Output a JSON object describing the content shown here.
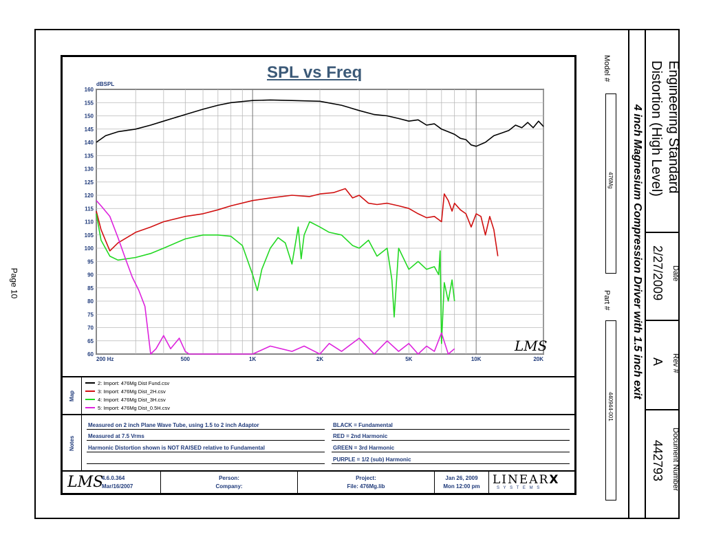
{
  "page_number": "Page 10",
  "title_block": {
    "doc_title_line1": "Engineering Standard",
    "doc_title_line2": "Distortion (High Level)",
    "subtitle": "4 inch Magnesium Compression Driver with 1.5 inch exit",
    "date_label": "Date",
    "date_value": "2/27/2009",
    "rev_label": "Rev #",
    "rev_value": "A",
    "doc_number_label": "Document Number",
    "doc_number_value": "442793",
    "model_label": "Model #",
    "model_value": "476Mg",
    "part_label": "Part #",
    "part_value": "440944-001"
  },
  "chart_data": {
    "type": "line",
    "title": "SPL vs Freq",
    "ylabel": "dBSPL",
    "xlabel": "",
    "xscale": "log",
    "xlim": [
      200,
      20000
    ],
    "ylim": [
      60,
      160
    ],
    "yticks": [
      60,
      65,
      70,
      75,
      80,
      85,
      90,
      95,
      100,
      105,
      110,
      115,
      120,
      125,
      130,
      135,
      140,
      145,
      150,
      155,
      160
    ],
    "xticks": [
      {
        "value": 200,
        "label": "200  Hz"
      },
      {
        "value": 500,
        "label": "500"
      },
      {
        "value": 1000,
        "label": "1K"
      },
      {
        "value": 2000,
        "label": "2K"
      },
      {
        "value": 5000,
        "label": "5K"
      },
      {
        "value": 10000,
        "label": "10K"
      },
      {
        "value": 20000,
        "label": "20K"
      }
    ],
    "grid": true,
    "watermark": "LMS",
    "series": [
      {
        "name": "2: Import: 476Mg Dist Fund.csv",
        "color": "#000000",
        "x": [
          200,
          220,
          250,
          300,
          350,
          400,
          500,
          600,
          700,
          800,
          1000,
          1200,
          1500,
          2000,
          2500,
          3000,
          3500,
          4000,
          4500,
          5000,
          5500,
          6000,
          6500,
          7000,
          7500,
          8000,
          8500,
          9000,
          9500,
          10000,
          11000,
          12000,
          13000,
          14000,
          15000,
          16000,
          17000,
          18000,
          19000,
          20000
        ],
        "y": [
          140,
          142.5,
          144,
          145,
          146.5,
          148,
          150.5,
          152.5,
          154,
          155,
          155.8,
          156,
          155.8,
          155.5,
          154,
          152,
          150.5,
          150,
          149,
          148,
          148.5,
          146.5,
          147,
          145,
          144,
          143,
          141.5,
          141,
          139,
          138.5,
          140,
          142.5,
          143.5,
          144.5,
          146.5,
          145.5,
          147.5,
          145.5,
          148,
          146
        ]
      },
      {
        "name": "3: Import: 476Mg Dist_2H.csv",
        "color": "#d01010",
        "x": [
          200,
          210,
          230,
          250,
          300,
          350,
          400,
          500,
          600,
          700,
          800,
          1000,
          1200,
          1500,
          1800,
          2000,
          2300,
          2600,
          2800,
          3000,
          3300,
          3600,
          4000,
          4500,
          5000,
          5500,
          6000,
          6500,
          7000,
          7200,
          7500,
          7800,
          8000,
          8500,
          9000,
          9500,
          10000,
          10500,
          11000,
          11500,
          12000,
          12500
        ],
        "y": [
          114,
          107,
          99,
          102,
          106,
          108,
          110,
          112,
          113,
          114.5,
          116,
          118,
          119,
          120,
          119.5,
          120.5,
          121,
          122.5,
          119,
          120,
          117,
          116.5,
          117,
          116,
          115,
          113,
          111.5,
          112,
          110,
          120.5,
          118,
          114,
          117,
          114.5,
          113,
          108,
          113,
          112,
          105,
          112,
          107,
          97
        ]
      },
      {
        "name": "4: Import: 476Mg Dist_3H.csv",
        "color": "#22d822",
        "x": [
          200,
          210,
          230,
          250,
          300,
          350,
          400,
          500,
          600,
          700,
          800,
          900,
          1000,
          1050,
          1100,
          1200,
          1300,
          1400,
          1500,
          1600,
          1650,
          1700,
          1800,
          2000,
          2200,
          2500,
          2800,
          3000,
          3300,
          3600,
          4000,
          4200,
          4300,
          4500,
          5000,
          5500,
          6000,
          6500,
          6800,
          6900,
          7000,
          7200,
          7500,
          7800,
          8000
        ],
        "y": [
          113,
          103,
          97,
          95.5,
          96.5,
          98,
          100,
          103.5,
          105,
          105,
          104.5,
          101,
          90,
          84,
          92,
          100,
          104,
          102,
          94,
          108,
          96,
          105,
          110,
          108,
          106,
          105,
          101,
          100,
          103,
          97,
          100,
          88,
          74,
          100,
          92,
          95,
          92,
          93,
          90,
          99,
          64,
          87,
          80,
          88,
          80
        ]
      },
      {
        "name": "5: Import: 476Mg Dist_0.5H.csv",
        "color": "#dd22dd",
        "x": [
          200,
          210,
          230,
          250,
          270,
          290,
          310,
          330,
          350,
          370,
          400,
          430,
          470,
          500,
          520,
          550,
          600,
          700,
          800,
          1000,
          1200,
          1500,
          1700,
          2000,
          2200,
          2500,
          3000,
          3500,
          4000,
          4500,
          5000,
          5500,
          6000,
          6500,
          7000,
          7500,
          8000
        ],
        "y": [
          118,
          116,
          112,
          104,
          96,
          89,
          84,
          78,
          60,
          62,
          67,
          62,
          66,
          61,
          60,
          60,
          60,
          60,
          60,
          60,
          63,
          61,
          63,
          60,
          64,
          61,
          66,
          60,
          65,
          61,
          64,
          60,
          63,
          61,
          68,
          60,
          62
        ]
      }
    ]
  },
  "map": {
    "label": "Map",
    "entries": [
      {
        "text": "2: Import: 476Mg Dist Fund.csv",
        "color": "#000000"
      },
      {
        "text": "3: Import: 476Mg Dist_2H.csv",
        "color": "#d01010"
      },
      {
        "text": "4: Import: 476Mg Dist_3H.csv",
        "color": "#22d822"
      },
      {
        "text": "5: Import: 476Mg Dist_0.5H.csv",
        "color": "#dd22dd"
      }
    ]
  },
  "notes": {
    "label": "Notes",
    "left": [
      "Measured on 2 inch Plane Wave Tube, using 1.5 to 2 inch Adaptor",
      "Measured at 7.5 Vrms",
      "Harmonic Distortion shown is  NOT RAISED relative to Fundamental"
    ],
    "right": [
      "BLACK = Fundamental",
      "RED = 2nd Harmonic",
      "GREEN = 3rd Harmonic",
      "PURPLE = 1/2 (sub) Harmonic"
    ]
  },
  "footer": {
    "logo": "LMS",
    "version": "4.6.0.364",
    "version_date": "Mar/16/2007",
    "person_label": "Person:",
    "company_label": "Company:",
    "project_label": "Project:",
    "file_label": "File: 476Mg.lib",
    "date": "Jan 26, 2009",
    "time": "Mon 12:00 pm",
    "brand_main": "LINEAR",
    "brand_x": "X",
    "brand_sub": "S Y S T E M S"
  }
}
